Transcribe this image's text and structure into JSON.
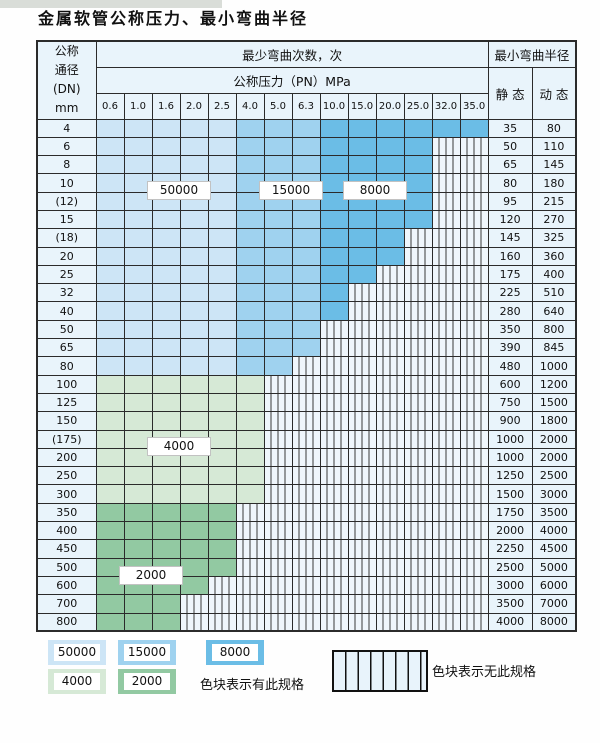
{
  "title": "金属软管公称压力、最小弯曲半径",
  "colors": {
    "c50000": "#cde5f6",
    "c15000": "#9fd2ef",
    "c8000": "#6bbde6",
    "c4000": "#d6e9d6",
    "c2000": "#92c9a2",
    "header_bg": "#e9f4fb",
    "grid": "#2b2b2b"
  },
  "table": {
    "header": {
      "dn_lines": [
        "公称",
        "通径",
        "(DN)",
        "mm"
      ],
      "cycles_title": "最少弯曲次数，次",
      "pn_title": "公称压力（PN）MPa",
      "pn_values": [
        "0.6",
        "1.0",
        "1.6",
        "2.0",
        "2.5",
        "4.0",
        "5.0",
        "6.3",
        "10.0",
        "15.0",
        "20.0",
        "25.0",
        "32.0",
        "35.0"
      ],
      "radius_title": "最小弯曲半径",
      "static_label": "静 态",
      "dynamic_label": "动 态"
    },
    "rows": [
      {
        "dn": "4",
        "max_col": 13,
        "palette": "blue",
        "static": "35",
        "dynamic": "80"
      },
      {
        "dn": "6",
        "max_col": 11,
        "palette": "blue",
        "static": "50",
        "dynamic": "110"
      },
      {
        "dn": "8",
        "max_col": 11,
        "palette": "blue",
        "static": "65",
        "dynamic": "145"
      },
      {
        "dn": "10",
        "max_col": 11,
        "palette": "blue",
        "static": "80",
        "dynamic": "180"
      },
      {
        "dn": "(12)",
        "max_col": 11,
        "palette": "blue",
        "static": "95",
        "dynamic": "215"
      },
      {
        "dn": "15",
        "max_col": 11,
        "palette": "blue",
        "static": "120",
        "dynamic": "270"
      },
      {
        "dn": "(18)",
        "max_col": 10,
        "palette": "blue",
        "static": "145",
        "dynamic": "325"
      },
      {
        "dn": "20",
        "max_col": 10,
        "palette": "blue",
        "static": "160",
        "dynamic": "360"
      },
      {
        "dn": "25",
        "max_col": 9,
        "palette": "blue",
        "static": "175",
        "dynamic": "400"
      },
      {
        "dn": "32",
        "max_col": 8,
        "palette": "blue",
        "static": "225",
        "dynamic": "510"
      },
      {
        "dn": "40",
        "max_col": 8,
        "palette": "blue",
        "static": "280",
        "dynamic": "640"
      },
      {
        "dn": "50",
        "max_col": 7,
        "palette": "blue",
        "static": "350",
        "dynamic": "800"
      },
      {
        "dn": "65",
        "max_col": 7,
        "palette": "blue",
        "static": "390",
        "dynamic": "845"
      },
      {
        "dn": "80",
        "max_col": 6,
        "palette": "blue",
        "static": "480",
        "dynamic": "1000"
      },
      {
        "dn": "100",
        "max_col": 5,
        "palette": "green_light",
        "static": "600",
        "dynamic": "1200"
      },
      {
        "dn": "125",
        "max_col": 5,
        "palette": "green_light",
        "static": "750",
        "dynamic": "1500"
      },
      {
        "dn": "150",
        "max_col": 5,
        "palette": "green_light",
        "static": "900",
        "dynamic": "1800"
      },
      {
        "dn": "(175)",
        "max_col": 5,
        "palette": "green_light",
        "static": "1000",
        "dynamic": "2000"
      },
      {
        "dn": "200",
        "max_col": 5,
        "palette": "green_light",
        "static": "1000",
        "dynamic": "2000"
      },
      {
        "dn": "250",
        "max_col": 5,
        "palette": "green_light",
        "static": "1250",
        "dynamic": "2500"
      },
      {
        "dn": "300",
        "max_col": 5,
        "palette": "green_light",
        "static": "1500",
        "dynamic": "3000"
      },
      {
        "dn": "350",
        "max_col": 4,
        "palette": "green_dark",
        "static": "1750",
        "dynamic": "3500"
      },
      {
        "dn": "400",
        "max_col": 4,
        "palette": "green_dark",
        "static": "2000",
        "dynamic": "4000"
      },
      {
        "dn": "450",
        "max_col": 4,
        "palette": "green_dark",
        "static": "2250",
        "dynamic": "4500"
      },
      {
        "dn": "500",
        "max_col": 4,
        "palette": "green_dark",
        "static": "2500",
        "dynamic": "5000"
      },
      {
        "dn": "600",
        "max_col": 3,
        "palette": "green_dark",
        "static": "3000",
        "dynamic": "6000"
      },
      {
        "dn": "700",
        "max_col": 2,
        "palette": "green_dark",
        "static": "3500",
        "dynamic": "7000"
      },
      {
        "dn": "800",
        "max_col": 2,
        "palette": "green_dark",
        "static": "4000",
        "dynamic": "8000"
      }
    ]
  },
  "overlay_labels": [
    {
      "text": "50000",
      "col_start": 2,
      "col_span": 2,
      "row_boundary": 4
    },
    {
      "text": "15000",
      "col_start": 6,
      "col_span": 2,
      "row_boundary": 4
    },
    {
      "text": "8000",
      "col_start": 9,
      "col_span": 2,
      "row_boundary": 4
    },
    {
      "text": "4000",
      "col_start": 2,
      "col_span": 2,
      "row_boundary": 18
    },
    {
      "text": "2000",
      "col_start": 1,
      "col_span": 2,
      "row_boundary": 25
    }
  ],
  "legend": {
    "has_spec_items": [
      {
        "label": "50000",
        "color_key": "c50000",
        "row": 0,
        "slot": 0
      },
      {
        "label": "15000",
        "color_key": "c15000",
        "row": 0,
        "slot": 1
      },
      {
        "label": "8000",
        "color_key": "c8000",
        "row": 0,
        "slot": 2
      },
      {
        "label": "4000",
        "color_key": "c4000",
        "row": 1,
        "slot": 0
      },
      {
        "label": "2000",
        "color_key": "c2000",
        "row": 1,
        "slot": 1
      }
    ],
    "has_spec_text": "色块表示有此规格",
    "no_spec_text": "色块表示无此规格"
  }
}
